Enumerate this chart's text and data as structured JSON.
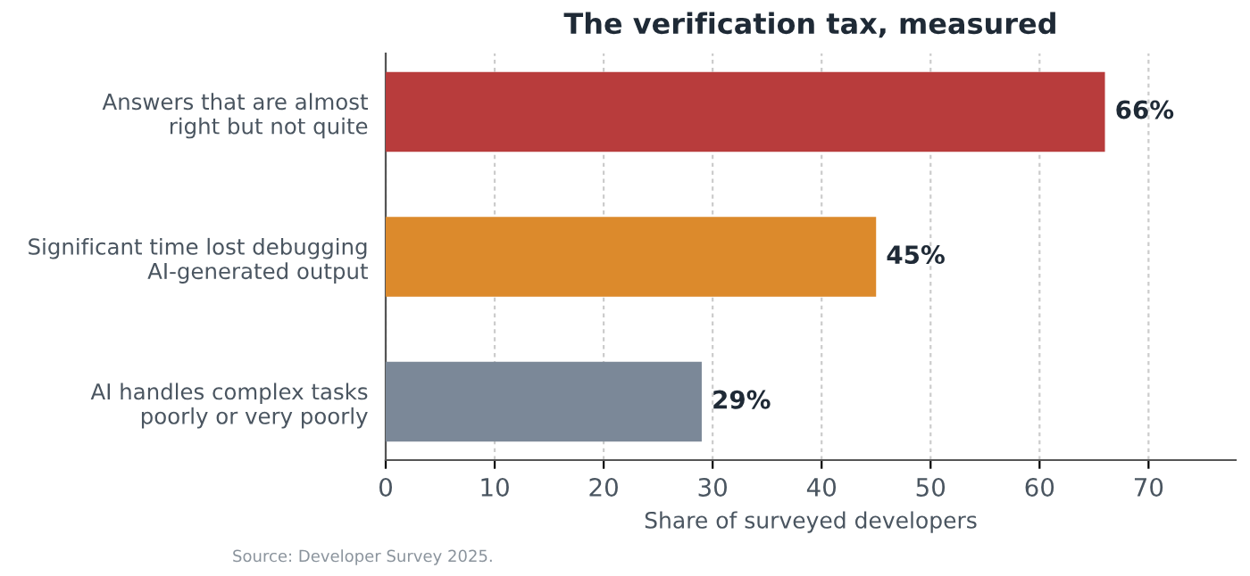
{
  "chart_data": {
    "type": "bar",
    "orientation": "horizontal",
    "title": "The verification tax, measured",
    "categories": [
      "Answers that are almost\nright but not quite",
      "Significant time lost debugging\nAI-generated output",
      "AI handles complex tasks\npoorly or very poorly"
    ],
    "values": [
      66,
      45,
      29
    ],
    "colors": [
      "#b83c3c",
      "#dc8a2c",
      "#7b8898"
    ],
    "value_labels": [
      "66%",
      "45%",
      "29%"
    ],
    "xlabel": "Share of surveyed developers",
    "xlim": [
      0,
      78
    ],
    "xticks": [
      0,
      10,
      20,
      30,
      40,
      50,
      60,
      70
    ],
    "grid": "x",
    "legend": false,
    "annotations": [
      "Source: Developer Survey 2025."
    ]
  }
}
